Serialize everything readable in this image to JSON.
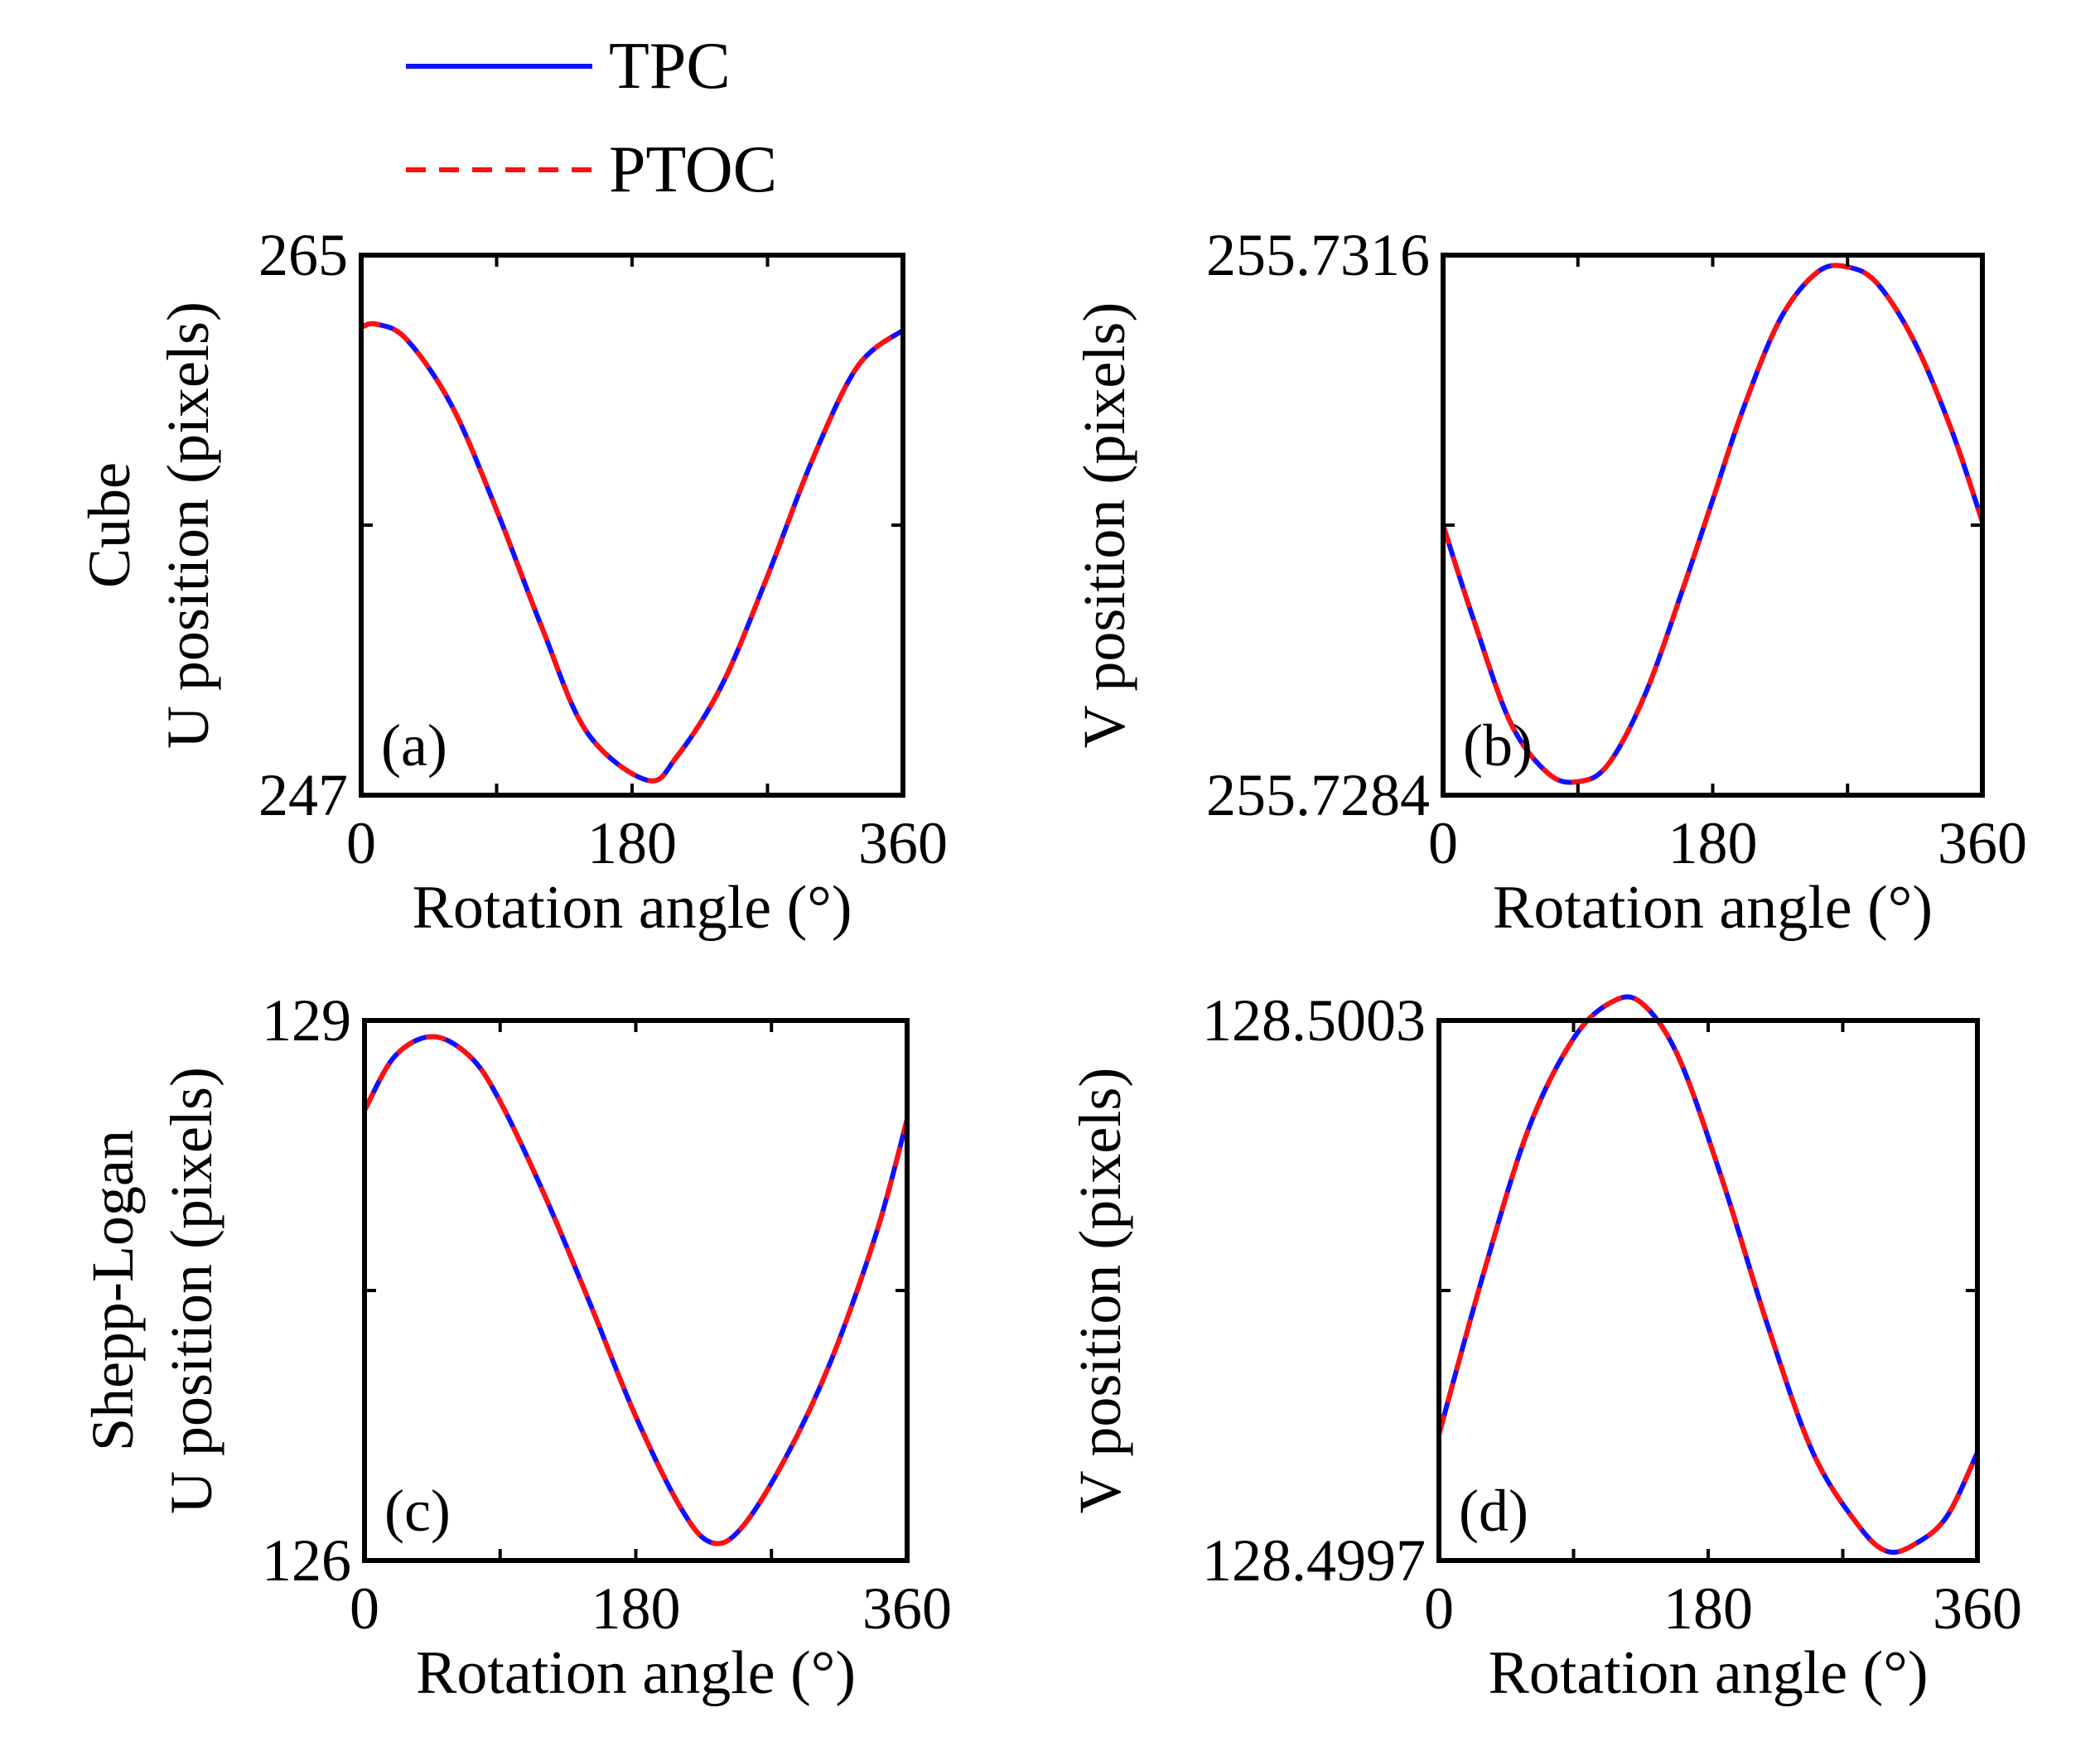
{
  "legend": [
    {
      "name": "TPC",
      "color": "#1010ff",
      "style": "solid"
    },
    {
      "name": "PTOC",
      "color": "#ff1010",
      "style": "dashed"
    }
  ],
  "rows": [
    "Cube",
    "Shepp-Logan"
  ],
  "chart_data": [
    {
      "type": "line",
      "panel_label": "(a)",
      "row_label": "Cube",
      "xlabel": "Rotation angle (°)",
      "ylabel": "U position (pixels)",
      "xlim": [
        0,
        360
      ],
      "ylim": [
        247,
        265
      ],
      "ylim_labels": [
        "247",
        "265"
      ],
      "xticks": [
        0,
        90,
        180,
        270,
        360
      ],
      "xtick_labels": [
        "0",
        "",
        "180",
        "",
        "360"
      ],
      "yticks": [
        247,
        256,
        265
      ],
      "x": [
        0,
        10,
        30,
        60,
        90,
        120,
        150,
        190,
        210,
        240,
        270,
        300,
        330,
        360
      ],
      "series": [
        {
          "name": "TPC",
          "values": [
            262.6,
            262.7,
            262.2,
            260.0,
            256.5,
            252.6,
            249.1,
            247.5,
            248.3,
            250.7,
            254.3,
            258.2,
            261.3,
            262.5
          ]
        },
        {
          "name": "PTOC",
          "values": [
            262.6,
            262.7,
            262.2,
            260.0,
            256.5,
            252.6,
            249.1,
            247.5,
            248.3,
            250.7,
            254.3,
            258.2,
            261.3,
            262.5
          ]
        }
      ]
    },
    {
      "type": "line",
      "panel_label": "(b)",
      "row_label": "",
      "xlabel": "Rotation angle (°)",
      "ylabel": "V position (pixels)",
      "xlim": [
        0,
        360
      ],
      "ylim": [
        255.7284,
        255.7316
      ],
      "ylim_labels": [
        "255.7284",
        "255.7316"
      ],
      "xticks": [
        0,
        90,
        180,
        270,
        360
      ],
      "xtick_labels": [
        "0",
        "",
        "180",
        "",
        "360"
      ],
      "yticks": [
        255.7284,
        255.73,
        255.7316
      ],
      "x": [
        0,
        20,
        45,
        70,
        90,
        110,
        135,
        160,
        180,
        200,
        225,
        250,
        270,
        290,
        315,
        340,
        360
      ],
      "series": [
        {
          "name": "TPC",
          "values": [
            255.73,
            255.72945,
            255.72883,
            255.72853,
            255.72848,
            255.72858,
            255.729,
            255.72962,
            255.73015,
            255.73068,
            255.73122,
            255.7315,
            255.73153,
            255.73143,
            255.73108,
            255.73055,
            255.73002
          ]
        },
        {
          "name": "PTOC",
          "values": [
            255.73,
            255.72945,
            255.72883,
            255.72853,
            255.72848,
            255.72858,
            255.729,
            255.72962,
            255.73015,
            255.73068,
            255.73122,
            255.7315,
            255.73153,
            255.73143,
            255.73108,
            255.73055,
            255.73002
          ]
        }
      ]
    },
    {
      "type": "line",
      "panel_label": "(c)",
      "row_label": "Shepp-Logan",
      "xlabel": "Rotation angle (°)",
      "ylabel": "U position (pixels)",
      "xlim": [
        0,
        360
      ],
      "ylim": [
        126,
        129
      ],
      "ylim_labels": [
        "126",
        "129"
      ],
      "xticks": [
        0,
        90,
        180,
        270,
        360
      ],
      "xtick_labels": [
        "0",
        "",
        "180",
        "",
        "360"
      ],
      "yticks": [
        126,
        127.5,
        129
      ],
      "x": [
        0,
        20,
        45,
        70,
        90,
        120,
        150,
        180,
        210,
        230,
        250,
        280,
        310,
        340,
        360
      ],
      "series": [
        {
          "name": "TPC",
          "values": [
            128.5,
            128.8,
            128.91,
            128.8,
            128.55,
            128.02,
            127.42,
            126.8,
            126.29,
            126.1,
            126.18,
            126.58,
            127.12,
            127.83,
            128.45
          ]
        },
        {
          "name": "PTOC",
          "values": [
            128.5,
            128.8,
            128.91,
            128.8,
            128.55,
            128.02,
            127.42,
            126.8,
            126.29,
            126.1,
            126.18,
            126.58,
            127.12,
            127.83,
            128.45
          ]
        }
      ]
    },
    {
      "type": "line",
      "panel_label": "(d)",
      "row_label": "",
      "xlabel": "Rotation angle (°)",
      "ylabel": "V position (pixels)",
      "xlim": [
        0,
        360
      ],
      "ylim": [
        128.4997,
        128.5003
      ],
      "ylim_labels": [
        "128.4997",
        "128.5003"
      ],
      "xticks": [
        0,
        90,
        180,
        270,
        360
      ],
      "xtick_labels": [
        "0",
        "",
        "180",
        "",
        "360"
      ],
      "yticks": [
        128.4997,
        128.5,
        128.5003
      ],
      "x": [
        0,
        30,
        60,
        90,
        115,
        135,
        160,
        190,
        220,
        250,
        280,
        300,
        320,
        340,
        360
      ],
      "series": [
        {
          "name": "TPC",
          "values": [
            128.49984,
            128.50002,
            128.50018,
            128.50028,
            128.50032,
            128.50032,
            128.50026,
            128.50012,
            128.49996,
            128.49982,
            128.49974,
            128.49971,
            128.49972,
            128.49975,
            128.49982
          ]
        },
        {
          "name": "PTOC",
          "values": [
            128.49984,
            128.50002,
            128.50018,
            128.50028,
            128.50032,
            128.50032,
            128.50026,
            128.50012,
            128.49996,
            128.49982,
            128.49974,
            128.49971,
            128.49972,
            128.49975,
            128.49982
          ]
        }
      ]
    }
  ]
}
